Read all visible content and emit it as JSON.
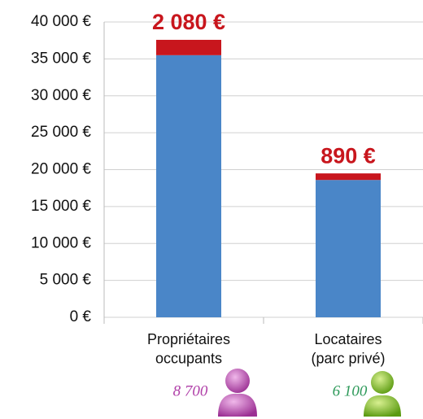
{
  "chart_data": {
    "type": "stacked-bar",
    "categories": [
      "Propriétaires\noccupants",
      "Locataires\n(parc privé)"
    ],
    "series": [
      {
        "color": "#4a86c8",
        "values": [
          35500,
          18600
        ]
      },
      {
        "color": "#c8161d",
        "values": [
          2080,
          890
        ],
        "value_labels": [
          "2 080 €",
          "890 €"
        ]
      }
    ],
    "counts": [
      {
        "label": "8 700",
        "color": "#b03fa8"
      },
      {
        "label": "6 100",
        "color": "#2e9a5a"
      }
    ],
    "ylim": [
      0,
      40000
    ],
    "yticks": [
      {
        "value": 0,
        "label": "0 €"
      },
      {
        "value": 5000,
        "label": "5 000 €"
      },
      {
        "value": 10000,
        "label": "10 000 €"
      },
      {
        "value": 15000,
        "label": "15 000 €"
      },
      {
        "value": 20000,
        "label": "20 000 €"
      },
      {
        "value": 25000,
        "label": "25 000 €"
      },
      {
        "value": 30000,
        "label": "30 000 €"
      },
      {
        "value": 35000,
        "label": "35 000 €"
      },
      {
        "value": 40000,
        "label": "40 000 €"
      }
    ],
    "grid": true
  }
}
